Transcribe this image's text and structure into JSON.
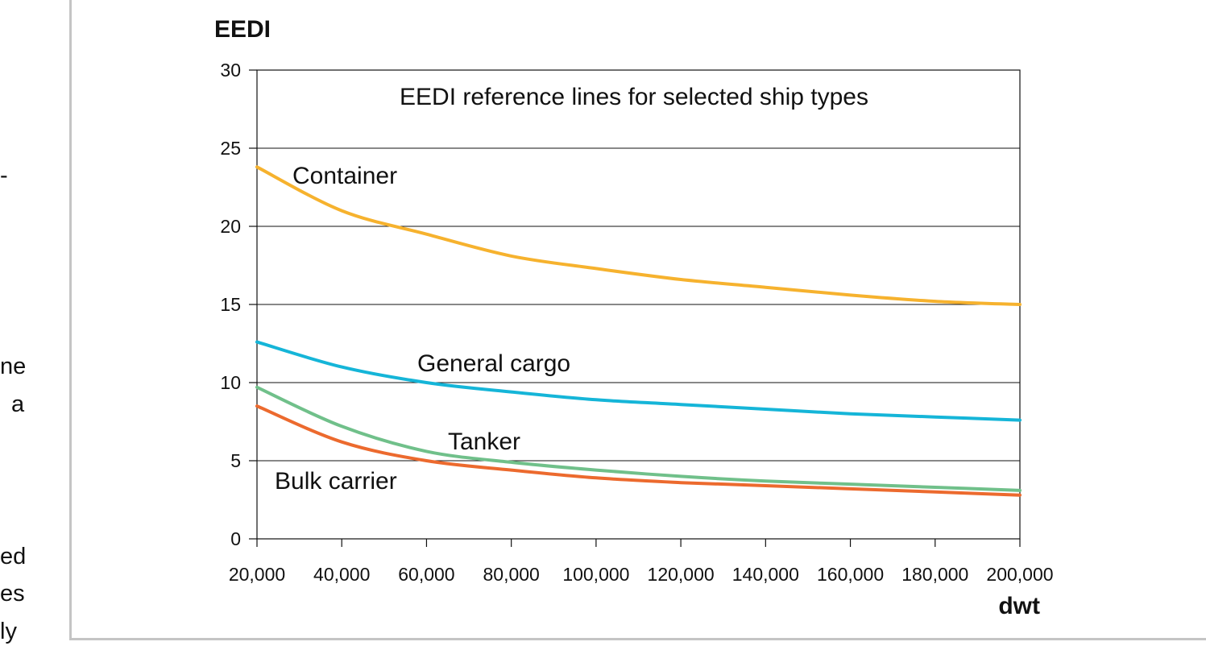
{
  "left_fragments": [
    "-",
    "ne",
    "a",
    "ed",
    "es",
    "ly"
  ],
  "chart_data": {
    "type": "line",
    "title": "EEDI reference lines for selected ship types",
    "ylabel": "EEDI",
    "xlabel": "dwt",
    "xlim": [
      20000,
      200000
    ],
    "ylim": [
      0,
      30
    ],
    "x_ticks": [
      20000,
      40000,
      60000,
      80000,
      100000,
      120000,
      140000,
      160000,
      180000,
      200000
    ],
    "x_tick_labels": [
      "20,000",
      "40,000",
      "60,000",
      "80,000",
      "100,000",
      "120,000",
      "140,000",
      "160,000",
      "180,000",
      "200,000"
    ],
    "y_ticks": [
      0,
      5,
      10,
      15,
      20,
      25,
      30
    ],
    "y_tick_labels": [
      "0",
      "5",
      "10",
      "15",
      "20",
      "25",
      "30"
    ],
    "grid": "horizontal",
    "x": [
      20000,
      40000,
      60000,
      80000,
      100000,
      120000,
      140000,
      160000,
      180000,
      200000
    ],
    "series": [
      {
        "name": "Container",
        "color": "#f6b22e",
        "values": [
          23.8,
          21.0,
          19.5,
          18.1,
          17.3,
          16.6,
          16.1,
          15.6,
          15.2,
          15.0
        ]
      },
      {
        "name": "General cargo",
        "color": "#15b5d8",
        "values": [
          12.6,
          11.0,
          10.0,
          9.4,
          8.9,
          8.6,
          8.3,
          8.0,
          7.8,
          7.6
        ]
      },
      {
        "name": "Tanker",
        "color": "#70c08a",
        "values": [
          9.7,
          7.2,
          5.6,
          4.9,
          4.4,
          4.0,
          3.7,
          3.5,
          3.3,
          3.1
        ]
      },
      {
        "name": "Bulk carrier",
        "color": "#ec6a2e",
        "values": [
          8.5,
          6.2,
          5.0,
          4.4,
          3.9,
          3.6,
          3.4,
          3.2,
          3.0,
          2.8
        ]
      }
    ]
  }
}
